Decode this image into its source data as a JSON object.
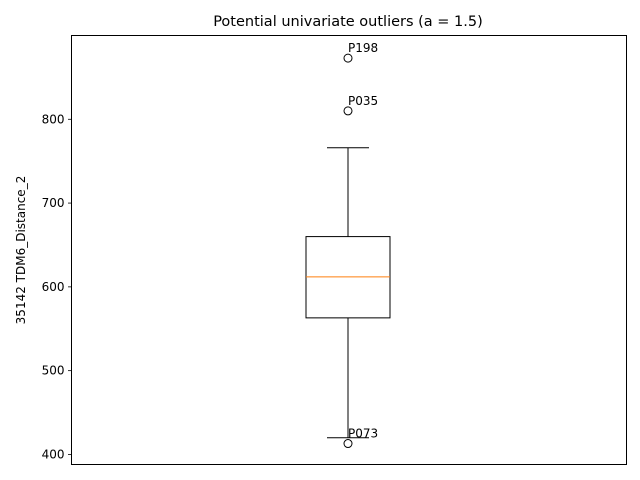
{
  "chart_data": {
    "type": "box",
    "title": "Potential univariate outliers (a = 1.5)",
    "xlabel": "",
    "ylabel": "35142 TDM6_Distance_2",
    "ylim": [
      388,
      900
    ],
    "yticks": [
      400,
      500,
      600,
      700,
      800
    ],
    "grid": false,
    "box": {
      "whisker_low": 420,
      "q1": 563,
      "median": 612,
      "q3": 660,
      "whisker_high": 766,
      "outliers": [
        {
          "label": "P198",
          "value": 873
        },
        {
          "label": "P035",
          "value": 810
        },
        {
          "label": "P073",
          "value": 413
        }
      ]
    },
    "colors": {
      "box": "#000000",
      "median": "#ff7f0e",
      "outlier_marker": "#000000"
    }
  }
}
